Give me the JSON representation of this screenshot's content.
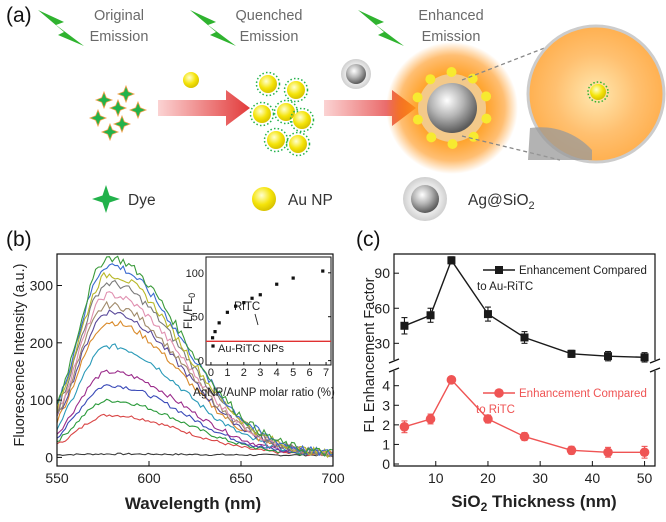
{
  "panel_a": {
    "label": "(a)",
    "stage_titles": [
      {
        "line1": "Original",
        "line2": "Emission"
      },
      {
        "line1": "Quenched",
        "line2": "Emission"
      },
      {
        "line1": "Enhanced",
        "line2": "Emission"
      }
    ],
    "legend": [
      {
        "label": "Dye"
      },
      {
        "label": "Au NP"
      },
      {
        "label_prefix": "Ag@SiO",
        "label_sub": "2"
      }
    ],
    "colors": {
      "bolt": "#2fb32f",
      "dye": "#22b24b",
      "au": "#f2e100",
      "glow": "#ff8a00",
      "arrow": "#e23b3b"
    }
  },
  "panel_b": {
    "label": "(b)",
    "ylabel": "Fluorescence Intensity (a.u.)",
    "xlabel": "Wavelength (nm)",
    "inset": {
      "ylabel_prefix": "FL/FL",
      "ylabel_sub": "0",
      "xlabel": "AgNP/AuNP molar ratio (%)",
      "annot_ritc": "RiTC",
      "annot_np": "Au-RiTC NPs"
    }
  },
  "panel_c": {
    "label": "(c)",
    "ylabel": "FL Enhancement Factor",
    "xlabel_prefix": "SiO",
    "xlabel_sub": "2",
    "xlabel_suffix": " Thickness (nm)",
    "legend_black_line1": "Enhancement Compared",
    "legend_black_line2": "to Au-RiTC",
    "legend_red_line1": "Enhancement Compared",
    "legend_red_line2": "to RiTC"
  },
  "chart_data": [
    {
      "type": "line",
      "title": "",
      "xlabel": "Wavelength (nm)",
      "ylabel": "Fluorescence Intensity (a.u.)",
      "xlim": [
        550,
        700
      ],
      "ylim": [
        -15,
        355
      ],
      "xticks": [
        550,
        600,
        650,
        700
      ],
      "yticks": [
        0,
        100,
        200,
        300
      ],
      "peak_wavelength": 578,
      "baseline": 4,
      "series": [
        {
          "name": "s1",
          "color": "#3a3a3a",
          "peak": 2
        },
        {
          "name": "s2",
          "color": "#d94545",
          "peak": 70
        },
        {
          "name": "s3",
          "color": "#2a9a3a",
          "peak": 95
        },
        {
          "name": "s4",
          "color": "#3a4ab8",
          "peak": 122
        },
        {
          "name": "s5",
          "color": "#9a2a8a",
          "peak": 145
        },
        {
          "name": "s6",
          "color": "#2a9ab8",
          "peak": 190
        },
        {
          "name": "s7",
          "color": "#d98a2a",
          "peak": 232
        },
        {
          "name": "s8",
          "color": "#5a4a9a",
          "peak": 250
        },
        {
          "name": "s9",
          "color": "#a08a6a",
          "peak": 262
        },
        {
          "name": "s10",
          "color": "#e090b0",
          "peak": 280
        },
        {
          "name": "s11",
          "color": "#7a7a7a",
          "peak": 300
        },
        {
          "name": "s12",
          "color": "#b8b82a",
          "peak": 315
        },
        {
          "name": "s13",
          "color": "#3a6ad0",
          "peak": 332
        },
        {
          "name": "s14",
          "color": "#3a9a3a",
          "peak": 345
        }
      ]
    },
    {
      "type": "scatter",
      "title": "inset",
      "xlabel": "AgNP/AuNP molar ratio (%)",
      "ylabel": "FL/FL0",
      "xlim": [
        -0.3,
        7.3
      ],
      "ylim": [
        -5,
        118
      ],
      "xticks": [
        0,
        1,
        2,
        3,
        4,
        5,
        6,
        7
      ],
      "yticks": [
        0,
        50,
        100
      ],
      "reference_line_value": 22,
      "reference_color": "#e03030",
      "x": [
        0.1,
        0.25,
        0.5,
        1.0,
        1.5,
        2.0,
        2.5,
        3.0,
        4.0,
        5.0,
        6.8
      ],
      "y": [
        26,
        33,
        43,
        55,
        62,
        66,
        71,
        75,
        87,
        94,
        102
      ]
    },
    {
      "type": "line",
      "title": "",
      "xlabel": "SiO2 Thickness (nm)",
      "ylabel": "FL Enhancement Factor",
      "xlim": [
        2,
        52
      ],
      "xticks": [
        10,
        20,
        30,
        40,
        50
      ],
      "axis_break": true,
      "upper": {
        "ylim": [
          20,
          103
        ],
        "yticks": [
          30,
          60,
          90
        ],
        "series": [
          {
            "name": "Enhancement Compared to Au-RiTC",
            "color": "#1a1a1a",
            "marker": "square",
            "x": [
              4,
              9,
              13,
              20,
              27,
              36,
              43,
              50
            ],
            "y": [
              45,
              54,
              101,
              55,
              35,
              21,
              19,
              18
            ],
            "err": [
              7,
              6,
              3,
              6,
              5,
              3,
              4,
              4
            ]
          }
        ]
      },
      "lower": {
        "ylim": [
          0,
          4.7
        ],
        "yticks": [
          0,
          1,
          2,
          3,
          4
        ],
        "series": [
          {
            "name": "Enhancement Compared to RiTC",
            "color": "#ef5454",
            "marker": "circle",
            "x": [
              4,
              9,
              13,
              20,
              27,
              36,
              43,
              50
            ],
            "y": [
              1.9,
              2.3,
              4.3,
              2.3,
              1.4,
              0.7,
              0.6,
              0.6
            ],
            "err": [
              0.3,
              0.25,
              0.1,
              0.2,
              0.2,
              0.2,
              0.25,
              0.3
            ]
          }
        ]
      }
    }
  ]
}
